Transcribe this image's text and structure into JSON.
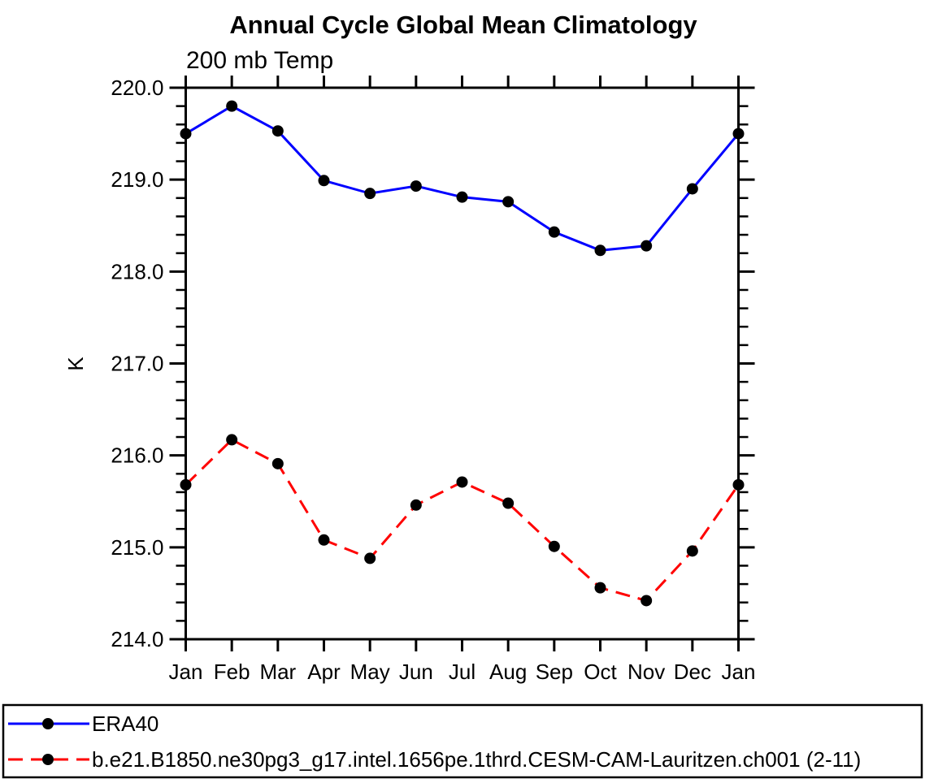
{
  "chart_data": {
    "type": "line",
    "title": "Annual Cycle Global Mean Climatology",
    "subtitle": "200 mb Temp",
    "xlabel": "",
    "ylabel": "K",
    "categories": [
      "Jan",
      "Feb",
      "Mar",
      "Apr",
      "May",
      "Jun",
      "Jul",
      "Aug",
      "Sep",
      "Oct",
      "Nov",
      "Dec",
      "Jan"
    ],
    "ylim": [
      214.0,
      220.0
    ],
    "y_major_ticks": [
      214.0,
      215.0,
      216.0,
      217.0,
      218.0,
      219.0,
      220.0
    ],
    "y_tick_labels": [
      "214.0",
      "215.0",
      "216.0",
      "217.0",
      "218.0",
      "219.0",
      "220.0"
    ],
    "y_minor_interval": 0.2,
    "grid": false,
    "frame_color": "#000000",
    "legend_position": "bottom-outside",
    "series": [
      {
        "name": "ERA40",
        "color": "#0000ff",
        "line_style": "solid",
        "marker": "filled-circle",
        "marker_color": "#000000",
        "values": [
          219.5,
          219.8,
          219.53,
          218.99,
          218.85,
          218.93,
          218.81,
          218.76,
          218.43,
          218.23,
          218.28,
          218.9,
          219.5
        ]
      },
      {
        "name": "b.e21.B1850.ne30pg3_g17.intel.1656pe.1thrd.CESM-CAM-Lauritzen.ch001 (2-11)",
        "color": "#ff0000",
        "line_style": "dashed",
        "marker": "filled-circle",
        "marker_color": "#000000",
        "values": [
          215.68,
          216.17,
          215.91,
          215.08,
          214.88,
          215.46,
          215.71,
          215.48,
          215.01,
          214.56,
          214.42,
          214.96,
          215.68
        ]
      }
    ]
  }
}
